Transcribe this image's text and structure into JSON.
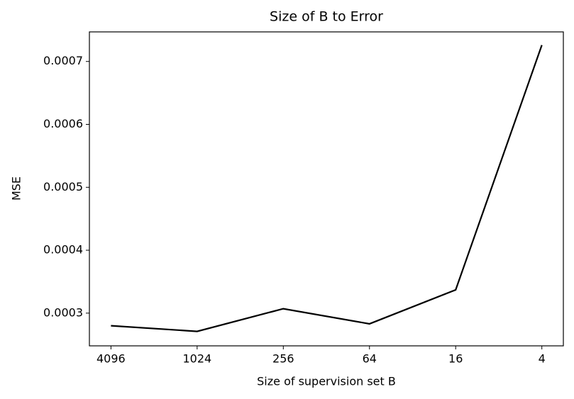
{
  "chart_data": {
    "type": "line",
    "title": "Size of B to Error",
    "x_label": "Size of supervision set B",
    "y_label": "MSE",
    "x": [
      4096,
      1024,
      256,
      64,
      16,
      4
    ],
    "series": [
      {
        "name": "MSE",
        "color": "#000000",
        "values": [
          0.00028,
          0.000271,
          0.000307,
          0.000283,
          0.000337,
          0.000726
        ]
      }
    ],
    "xscale": "log",
    "xlim": [
      5793,
      2.83
    ],
    "xticks": [
      4096,
      1024,
      256,
      64,
      16,
      4
    ],
    "ylim": [
      0.000248,
      0.000747
    ],
    "yticks": [
      0.0003,
      0.0004,
      0.0005,
      0.0006,
      0.0007
    ],
    "grid": false
  }
}
